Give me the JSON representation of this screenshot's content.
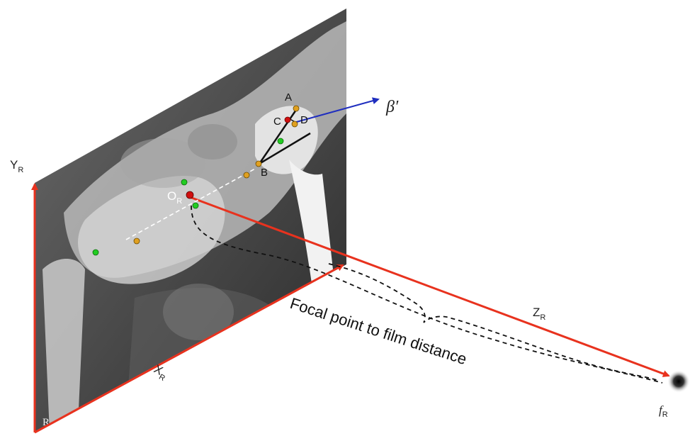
{
  "labels": {
    "y_axis": "Y",
    "y_axis_sub": "R",
    "x_axis": "X",
    "x_axis_sub": "R",
    "z_axis": "Z",
    "z_axis_sub": "R",
    "origin": "O",
    "origin_sub": "R",
    "point_a": "A",
    "point_b": "B",
    "point_c": "C",
    "point_d": "D",
    "beta": "β′",
    "focal_distance": "Focal point to film distance",
    "focal_point": "f",
    "focal_point_sub": "R",
    "film_corner": "R"
  },
  "colors": {
    "axis": "#e8321e",
    "beta_arrow": "#1f2ebf",
    "landmark_orange": "#e0a020",
    "landmark_green": "#22cc22",
    "origin_point": "#d01010",
    "dashed": "#111111"
  },
  "icons": [
    "radiograph-film",
    "focal-point-icon"
  ]
}
